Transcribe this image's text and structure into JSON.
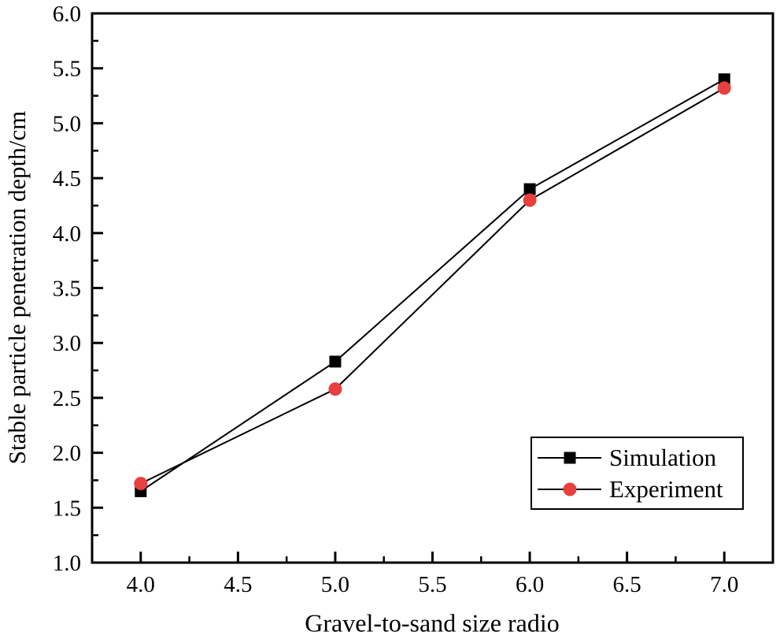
{
  "chart_data": {
    "type": "line",
    "title": "",
    "xlabel": "Gravel-to-sand size radio",
    "ylabel": "Stable particle penetration depth/cm",
    "x": [
      4.0,
      5.0,
      6.0,
      7.0
    ],
    "series": [
      {
        "name": "Simulation",
        "values": [
          1.65,
          2.83,
          4.4,
          5.4
        ],
        "marker": "square",
        "marker_color": "#000000",
        "line_color": "#000000"
      },
      {
        "name": "Experiment",
        "values": [
          1.72,
          2.58,
          4.3,
          5.32
        ],
        "marker": "circle",
        "marker_color": "#e8403e",
        "line_color": "#000000"
      }
    ],
    "x_axis": {
      "min": 3.75,
      "max": 7.25,
      "major_ticks": [
        4.0,
        4.5,
        5.0,
        5.5,
        6.0,
        6.5,
        7.0
      ],
      "minor_step": 0.25,
      "tick_decimals": 1
    },
    "y_axis": {
      "min": 1.0,
      "max": 6.0,
      "major_ticks": [
        1.0,
        1.5,
        2.0,
        2.5,
        3.0,
        3.5,
        4.0,
        4.5,
        5.0,
        5.5,
        6.0
      ],
      "minor_step": 0.25,
      "tick_decimals": 1
    },
    "grid": false,
    "legend_position": "inside lower right",
    "axis_color": "#000000",
    "background_color": "#ffffff"
  }
}
